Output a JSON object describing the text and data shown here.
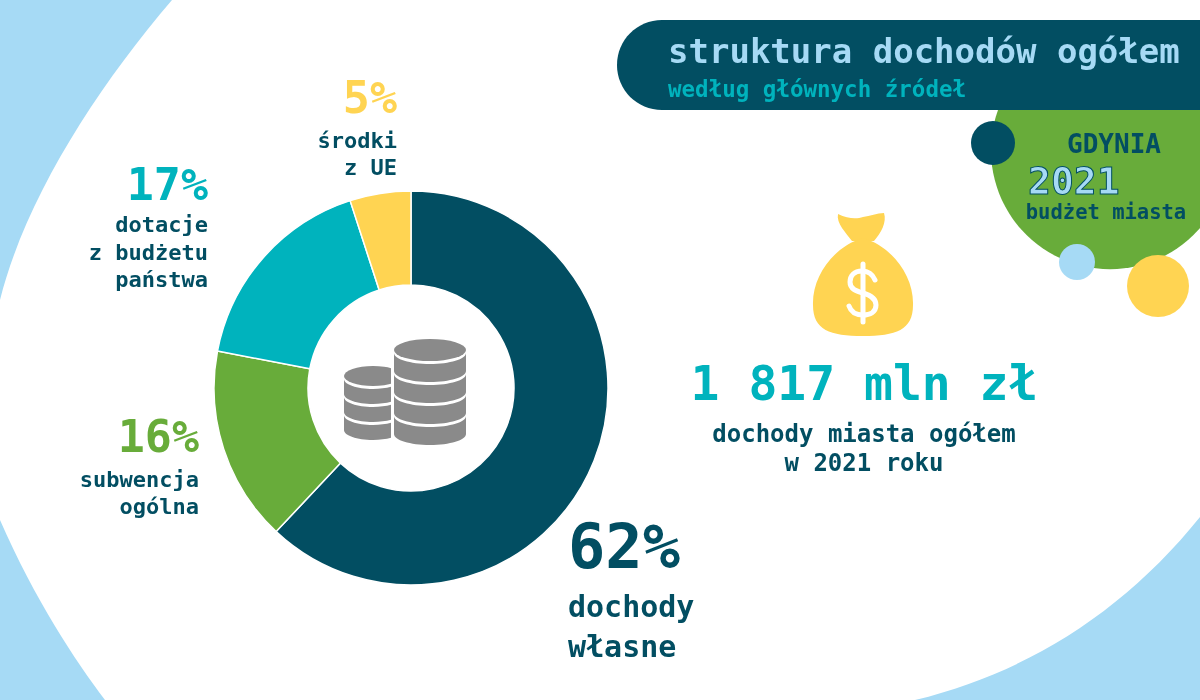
{
  "chart_data": {
    "type": "donut",
    "title": "struktura dochodów ogółem",
    "subtitle": "według głównych źródeł",
    "categories": [
      "dochody własne",
      "subwencja ogólna",
      "dotacje z budżetu państwa",
      "środki z UE"
    ],
    "values": [
      62,
      16,
      17,
      5
    ],
    "value_labels": [
      "62%",
      "16%",
      "17%",
      "5%"
    ],
    "colors": [
      "#024e62",
      "#68ac3a",
      "#00b3bd",
      "#ffd452"
    ],
    "annotations": [
      "1 817 mln zł",
      "dochody miasta ogółem",
      "w 2021 roku",
      "GDYNIA",
      "2021",
      "budżet miasta"
    ]
  }
}
